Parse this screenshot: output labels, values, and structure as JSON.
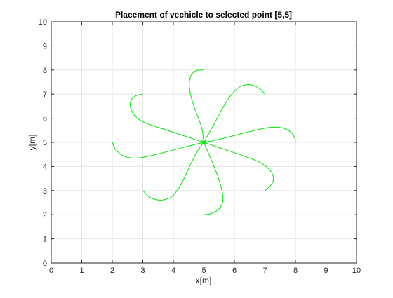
{
  "chart_data": {
    "type": "line",
    "title": "Placement of vechicle to selected point [5,5]",
    "xlabel": "x[m]",
    "ylabel": "y[m]",
    "xlim": [
      0,
      10
    ],
    "ylim": [
      0,
      10
    ],
    "xticks": [
      "0",
      "1",
      "2",
      "3",
      "4",
      "5",
      "6",
      "7",
      "8",
      "9",
      "10"
    ],
    "yticks": [
      "0",
      "1",
      "2",
      "3",
      "4",
      "5",
      "6",
      "7",
      "8",
      "9",
      "10"
    ],
    "grid": true,
    "legend": "none",
    "line_color": "#00e600",
    "target_point": [
      5,
      5
    ],
    "series": [
      {
        "x": [
          5.0,
          4.79,
          4.64,
          4.55,
          4.52,
          4.57,
          4.7,
          4.92,
          5.0
        ],
        "y": [
          8.0,
          7.99,
          7.88,
          7.68,
          7.38,
          6.95,
          6.4,
          5.65,
          5.0
        ]
      },
      {
        "x": [
          7.0,
          6.85,
          6.63,
          6.4,
          6.17,
          5.95,
          5.72,
          5.5,
          5.22,
          5.0
        ],
        "y": [
          7.0,
          7.2,
          7.36,
          7.39,
          7.3,
          7.05,
          6.65,
          6.15,
          5.5,
          5.0
        ]
      },
      {
        "x": [
          8.0,
          7.97,
          7.85,
          7.65,
          7.4,
          7.05,
          6.55,
          5.9,
          5.3,
          5.0
        ],
        "y": [
          5.0,
          5.2,
          5.42,
          5.57,
          5.63,
          5.6,
          5.46,
          5.25,
          5.07,
          5.0
        ]
      },
      {
        "x": [
          7.0,
          7.18,
          7.28,
          7.22,
          7.02,
          6.7,
          6.25,
          5.7,
          5.3,
          5.0
        ],
        "y": [
          3.0,
          3.2,
          3.45,
          3.75,
          4.02,
          4.25,
          4.46,
          4.7,
          4.87,
          5.0
        ]
      },
      {
        "x": [
          5.0,
          5.25,
          5.5,
          5.62,
          5.6,
          5.48,
          5.3,
          5.15,
          5.05,
          5.0
        ],
        "y": [
          2.0,
          2.05,
          2.25,
          2.55,
          2.95,
          3.5,
          4.1,
          4.55,
          4.85,
          5.0
        ]
      },
      {
        "x": [
          3.0,
          3.2,
          3.45,
          3.7,
          3.95,
          4.15,
          4.35,
          4.55,
          4.8,
          5.0
        ],
        "y": [
          3.0,
          2.75,
          2.62,
          2.62,
          2.75,
          3.05,
          3.5,
          4.05,
          4.65,
          5.0
        ]
      },
      {
        "x": [
          2.0,
          2.1,
          2.35,
          2.65,
          3.0,
          3.5,
          4.05,
          4.6,
          5.0
        ],
        "y": [
          5.0,
          4.72,
          4.45,
          4.35,
          4.38,
          4.52,
          4.7,
          4.88,
          5.0
        ]
      },
      {
        "x": [
          3.0,
          2.75,
          2.6,
          2.62,
          2.82,
          3.2,
          3.75,
          4.4,
          5.0
        ],
        "y": [
          7.0,
          6.92,
          6.7,
          6.35,
          6.0,
          5.75,
          5.52,
          5.25,
          5.0
        ]
      }
    ]
  }
}
